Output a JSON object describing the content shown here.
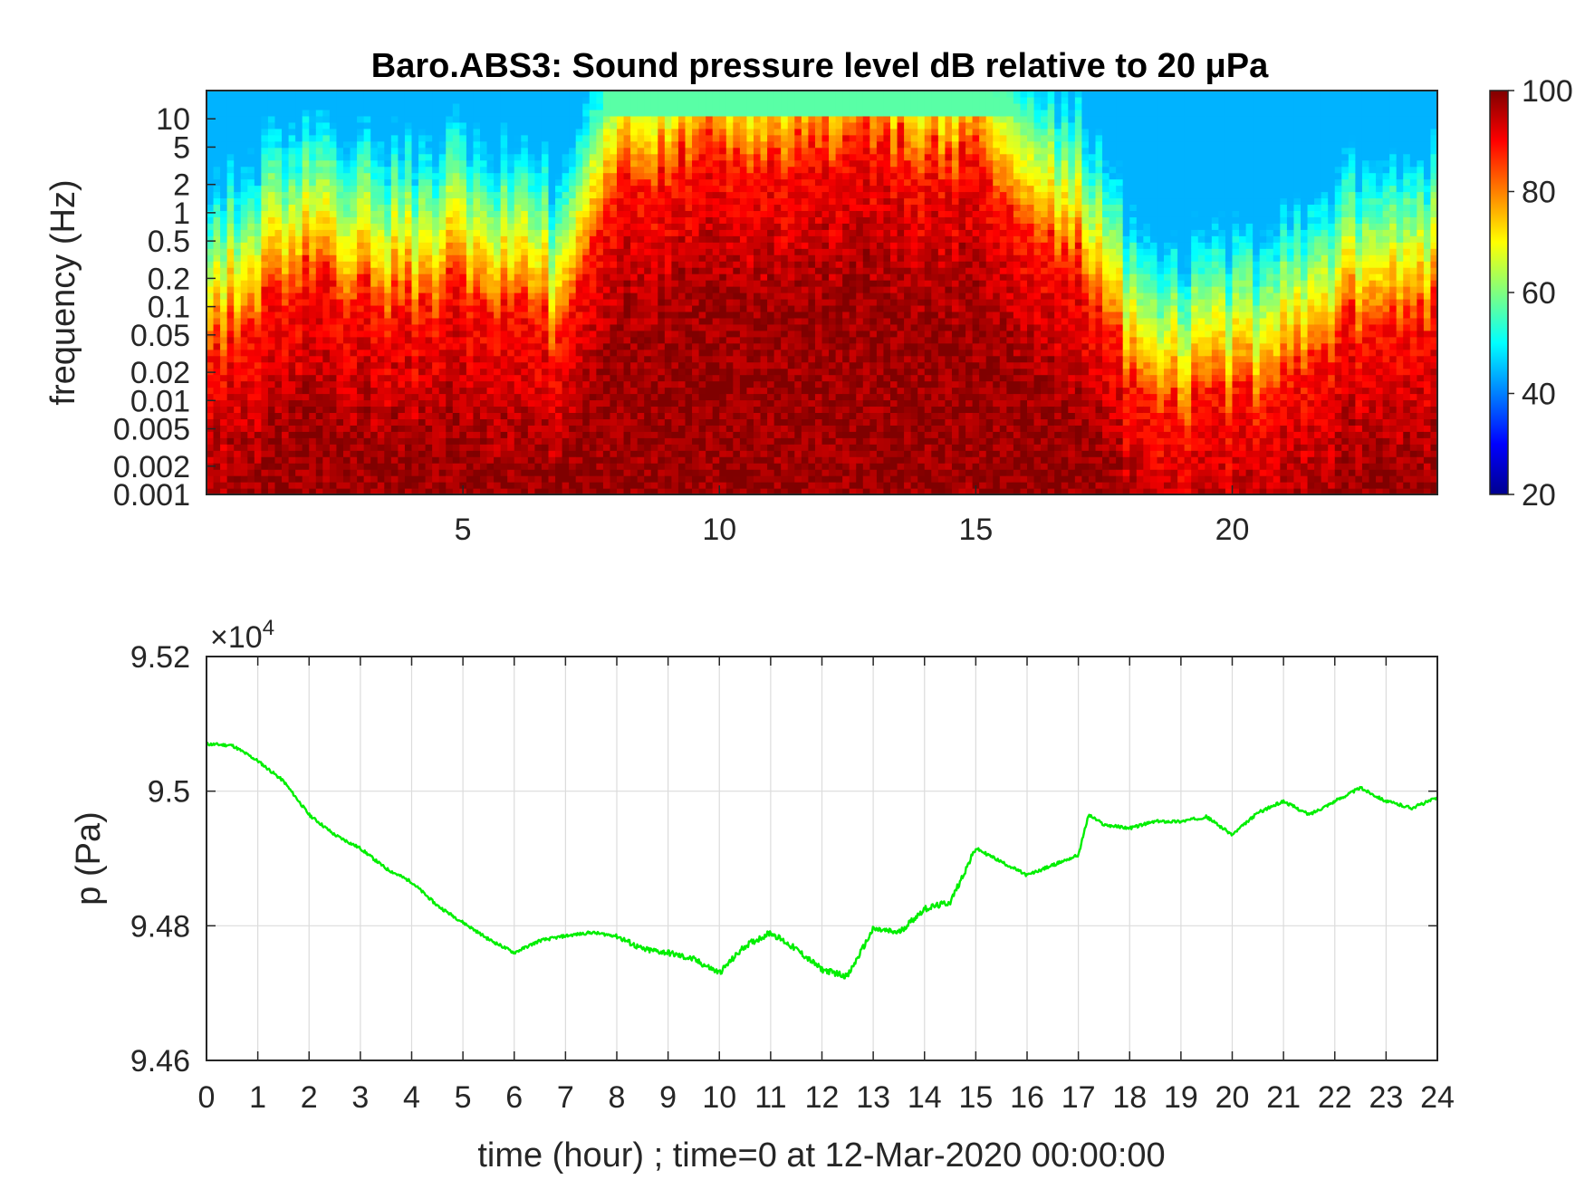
{
  "chart_data": [
    {
      "type": "heatmap",
      "title": "Baro.ABS3: Sound pressure level dB relative to 20 μPa",
      "xlabel": "",
      "ylabel": "frequency (Hz)",
      "x_ticks": [
        "5",
        "10",
        "15",
        "20"
      ],
      "x_tick_values": [
        5,
        10,
        15,
        20
      ],
      "xlim": [
        0,
        24
      ],
      "y_scale": "log",
      "ylim": [
        0.001,
        20
      ],
      "y_ticks": [
        "10",
        "5",
        "2",
        "1",
        "0.5",
        "0.2",
        "0.1",
        "0.05",
        "0.02",
        "0.01",
        "0.005",
        "0.002",
        "0.001"
      ],
      "y_tick_values": [
        10,
        5,
        2,
        1,
        0.5,
        0.2,
        0.1,
        0.05,
        0.02,
        0.01,
        0.005,
        0.002,
        0.001
      ],
      "colormap": "jet",
      "colorbar_range": [
        20,
        100
      ],
      "colorbar_ticks": [
        "100",
        "80",
        "60",
        "40",
        "20"
      ],
      "colorbar_tick_values": [
        100,
        80,
        60,
        40,
        20
      ],
      "intensity_profile": {
        "hours": [
          0,
          1,
          2,
          3,
          4,
          5,
          6,
          7,
          8,
          9,
          10,
          11,
          12,
          13,
          14,
          15,
          16,
          17,
          18,
          19,
          20,
          21,
          22,
          23,
          24
        ],
        "hot_top_freq_hz": [
          0.03,
          0.1,
          0.2,
          0.15,
          0.1,
          0.2,
          0.1,
          0.05,
          2,
          3,
          5,
          4,
          6,
          7,
          4,
          5,
          1,
          0.3,
          0.02,
          0.01,
          0.01,
          0.02,
          0.05,
          0.1,
          0.1
        ]
      }
    },
    {
      "type": "line",
      "title": "",
      "xlabel": "time (hour) ; time=0 at 12-Mar-2020 00:00:00",
      "ylabel": "p (Pa)",
      "y_exponent_label": "×10",
      "y_exponent": "4",
      "xlim": [
        0,
        24
      ],
      "ylim": [
        9.46,
        9.52
      ],
      "x_ticks": [
        "0",
        "1",
        "2",
        "3",
        "4",
        "5",
        "6",
        "7",
        "8",
        "9",
        "10",
        "11",
        "12",
        "13",
        "14",
        "15",
        "16",
        "17",
        "18",
        "19",
        "20",
        "21",
        "22",
        "23",
        "24"
      ],
      "x_tick_values": [
        0,
        1,
        2,
        3,
        4,
        5,
        6,
        7,
        8,
        9,
        10,
        11,
        12,
        13,
        14,
        15,
        16,
        17,
        18,
        19,
        20,
        21,
        22,
        23,
        24
      ],
      "y_ticks": [
        "9.52",
        "9.5",
        "9.48",
        "9.46"
      ],
      "y_tick_values": [
        9.52,
        9.5,
        9.48,
        9.46
      ],
      "grid": true,
      "line_color": "#00ee00",
      "series": [
        {
          "x": [
            0,
            0.5,
            1,
            1.5,
            2,
            2.5,
            3,
            3.5,
            4,
            4.5,
            5,
            5.5,
            6,
            6.5,
            7,
            7.5,
            8,
            8.5,
            9,
            9.5,
            10,
            10.5,
            11,
            11.5,
            12,
            12.5,
            13,
            13.5,
            14,
            14.5,
            15,
            15.5,
            16,
            16.5,
            17,
            17.2,
            17.5,
            18,
            18.5,
            19,
            19.5,
            20,
            20.5,
            21,
            21.5,
            22,
            22.5,
            23,
            23.5,
            24
          ],
          "y": [
            9.507,
            9.5068,
            9.5045,
            9.5015,
            9.4965,
            9.4935,
            9.4915,
            9.4885,
            9.4865,
            9.483,
            9.4805,
            9.478,
            9.476,
            9.4778,
            9.4785,
            9.479,
            9.4785,
            9.4765,
            9.476,
            9.475,
            9.473,
            9.477,
            9.479,
            9.4765,
            9.4735,
            9.4725,
            9.4795,
            9.479,
            9.4825,
            9.4835,
            9.4915,
            9.4895,
            9.4875,
            9.489,
            9.4905,
            9.4965,
            9.495,
            9.4945,
            9.4955,
            9.4955,
            9.4962,
            9.4935,
            9.4968,
            9.4985,
            9.4965,
            9.4985,
            9.5005,
            9.4985,
            9.4975,
            9.499
          ]
        }
      ]
    }
  ]
}
